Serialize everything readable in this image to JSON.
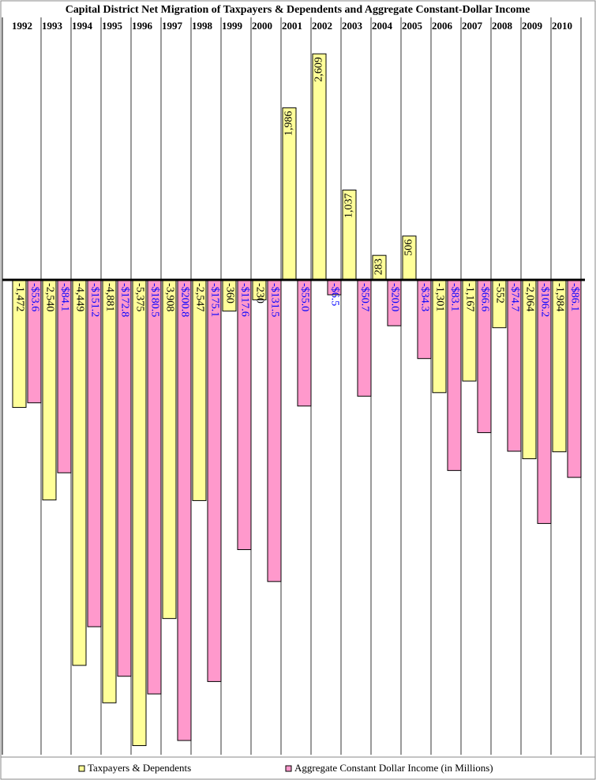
{
  "chart_data": {
    "type": "bar",
    "title": "Capital District Net Migration of Taxpayers & Dependents and Aggregate Constant-Dollar Income",
    "categories": [
      "1992",
      "1993",
      "1994",
      "1995",
      "1996",
      "1997",
      "1998",
      "1999",
      "2000",
      "2001",
      "2002",
      "2003",
      "2004",
      "2005",
      "2006",
      "2007",
      "2008",
      "2009",
      "2010"
    ],
    "series": [
      {
        "name": "Taxpayers & Dependents",
        "color": "#ffff99",
        "label_color": "#000000",
        "values": [
          -1472,
          -2540,
          -4449,
          -4881,
          -5375,
          -3908,
          -2547,
          -360,
          -230,
          1986,
          2609,
          1037,
          283,
          506,
          -1301,
          -1167,
          -552,
          -2064,
          -1984
        ],
        "value_labels": [
          "-1,472",
          "-2,540",
          "-4,449",
          "-4,881",
          "-5,375",
          "-3,908",
          "-2,547",
          "-360",
          "-230",
          "1,986",
          "2,609",
          "1,037",
          "283",
          "506",
          "-1,301",
          "-1,167",
          "-552",
          "-2,064",
          "-1,984"
        ]
      },
      {
        "name": "Aggregate Constant Dollar Income (in Millions)",
        "color": "#ff99cc",
        "label_color": "#0000ff",
        "axis": "y2",
        "values": [
          -53.6,
          -84.1,
          -151.2,
          -172.8,
          -180.5,
          -200.8,
          -175.1,
          -117.6,
          -131.5,
          -55.0,
          -6.5,
          -50.7,
          -20.0,
          -34.3,
          -83.1,
          -66.6,
          -74.7,
          -106.2,
          -86.1
        ],
        "value_labels": [
          "-$53.6",
          "-$84.1",
          "-$151.2",
          "-$172.8",
          "-$180.5",
          "-$200.8",
          "-$175.1",
          "-$117.6",
          "-$131.5",
          "-$55.0",
          "-$6.5",
          "-$50.7",
          "-$20.0",
          "-$34.3",
          "-$83.1",
          "-$66.6",
          "-$74.7",
          "-$106.2",
          "-$86.1"
        ]
      }
    ],
    "ylim": [
      -5480,
      2820
    ],
    "y2lim": [
      -207,
      106.5
    ]
  }
}
